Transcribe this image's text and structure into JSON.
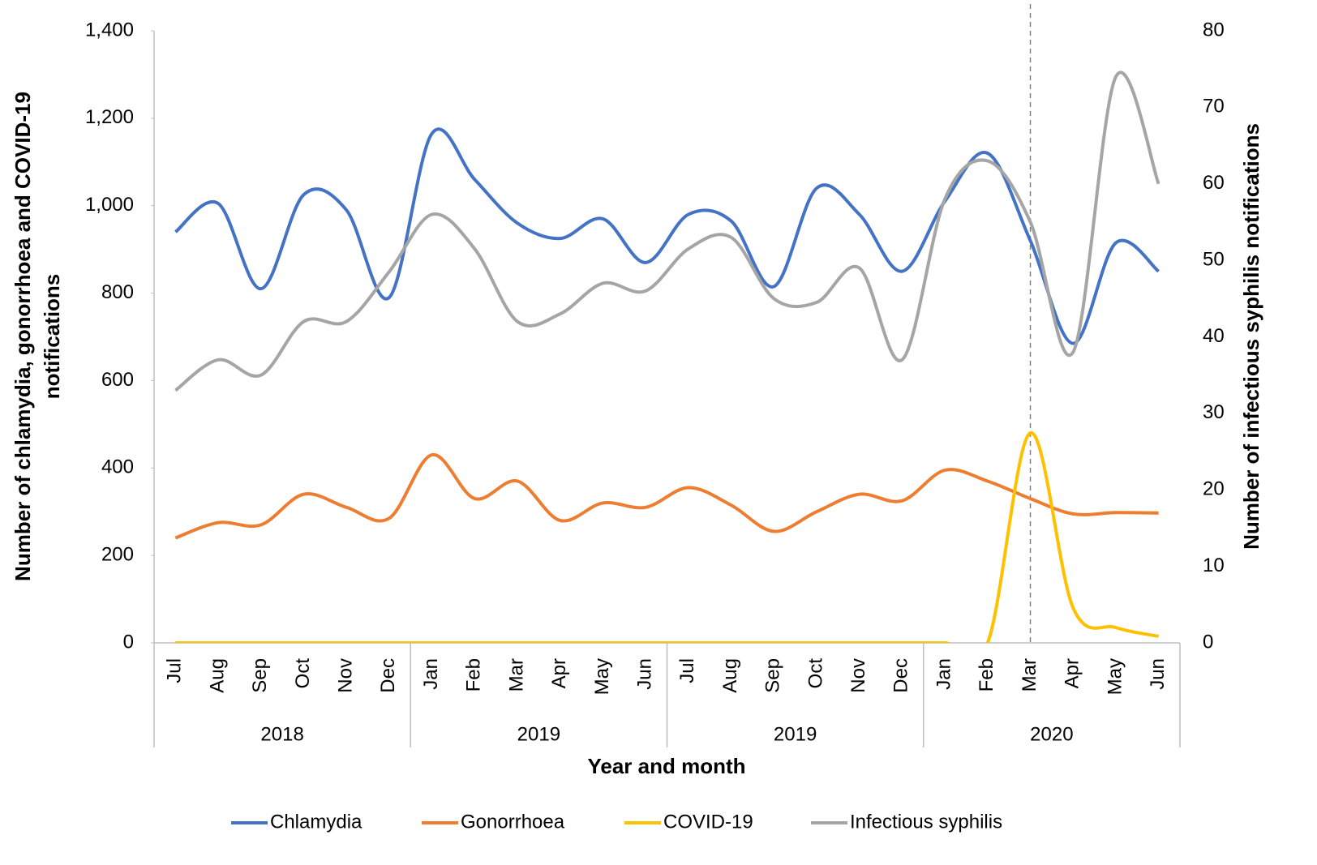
{
  "chart_data": {
    "type": "line",
    "x_label": "Year and month",
    "y_label": [
      "Number of chlamydia, gonorrhoea and COVID-19",
      "notifications"
    ],
    "y2_label": "Number of infectious syphilis notifications",
    "categories": [
      "Jul",
      "Aug",
      "Sep",
      "Oct",
      "Nov",
      "Dec",
      "Jan",
      "Feb",
      "Mar",
      "Apr",
      "May",
      "Jun",
      "Jul",
      "Aug",
      "Sep",
      "Oct",
      "Nov",
      "Dec",
      "Jan",
      "Feb",
      "Mar",
      "Apr",
      "May",
      "Jun"
    ],
    "x_groups": [
      "2018",
      "2019",
      "2019",
      "2020"
    ],
    "ylim": [
      0,
      1400
    ],
    "yticks": [
      0,
      200,
      400,
      600,
      800,
      {
        "value": 1000,
        "label": "1,000"
      },
      {
        "value": 1200,
        "label": "1,200"
      },
      {
        "value": 1400,
        "label": "1,400"
      }
    ],
    "y2lim": [
      0,
      80
    ],
    "y2ticks": [
      0,
      10,
      20,
      30,
      40,
      50,
      60,
      70,
      80
    ],
    "smooth": true,
    "legend": "bottom",
    "series": [
      {
        "name": "Chlamydia",
        "color": "#4472c4",
        "values": [
          940,
          1005,
          810,
          1025,
          990,
          790,
          1165,
          1060,
          960,
          925,
          970,
          870,
          980,
          965,
          815,
          1040,
          980,
          850,
          1010,
          1120,
          920,
          685,
          915,
          850
        ]
      },
      {
        "name": "Gonorrhoea",
        "color": "#ed7d31",
        "values": [
          240,
          275,
          270,
          340,
          310,
          285,
          430,
          330,
          370,
          280,
          320,
          310,
          355,
          315,
          255,
          300,
          340,
          325,
          395,
          370,
          330,
          295,
          298,
          297
        ]
      },
      {
        "name": "COVID-19",
        "color": "#ffc000",
        "values": [
          0,
          0,
          0,
          0,
          0,
          0,
          0,
          0,
          0,
          0,
          0,
          0,
          0,
          0,
          0,
          0,
          0,
          0,
          0,
          0,
          480,
          80,
          35,
          15
        ]
      },
      {
        "name": "Infectious syphilis",
        "color": "#a5a5a5",
        "axis": "y2",
        "values": [
          33,
          37,
          35,
          42,
          42,
          48.5,
          56,
          51.5,
          42,
          43,
          47,
          46,
          51.5,
          53,
          45,
          44.5,
          49,
          37,
          58,
          63,
          55,
          38,
          74,
          60
        ]
      }
    ]
  }
}
